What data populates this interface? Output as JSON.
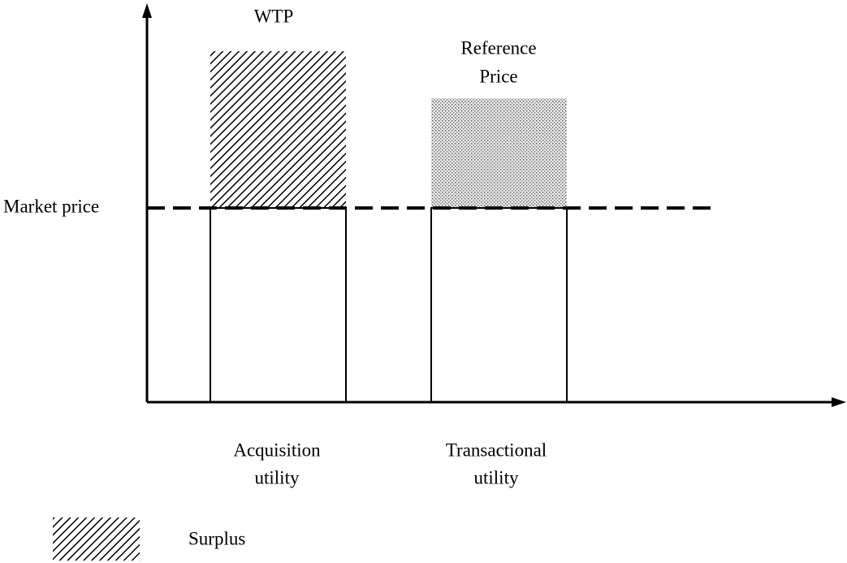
{
  "diagram": {
    "wtp_label": "WTP",
    "reference_price_label": [
      "Reference",
      "Price"
    ],
    "market_price_label": "Market price",
    "bars": [
      {
        "label": [
          "Acquisition",
          "utility"
        ]
      },
      {
        "label": [
          "Transactional",
          "utility"
        ]
      }
    ],
    "legend": {
      "label": "Surplus"
    }
  }
}
